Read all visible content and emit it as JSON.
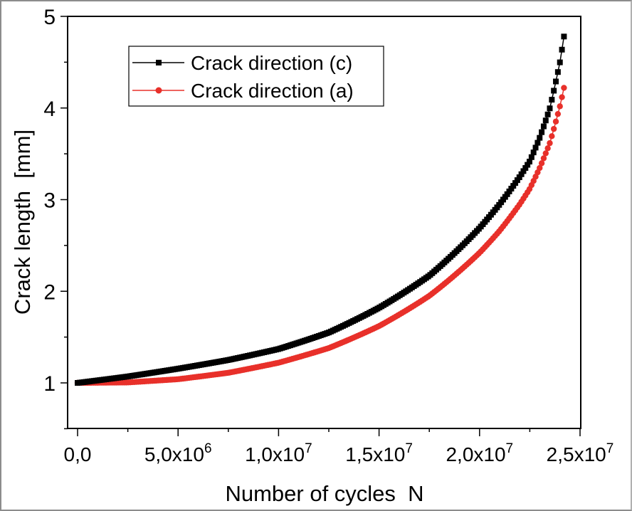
{
  "chart_data": {
    "type": "line",
    "title": "",
    "xlabel": "Number of cycles  N",
    "ylabel": "Crack length  [mm]",
    "xlim": [
      -500000,
      25000000
    ],
    "ylim": [
      0.5,
      5
    ],
    "grid": false,
    "legend_position": "upper-left",
    "x_ticks": [
      {
        "value": 0,
        "mant": "0,0",
        "exp": ""
      },
      {
        "value": 5000000,
        "mant": "5,0x10",
        "exp": "6"
      },
      {
        "value": 10000000,
        "mant": "1,0x10",
        "exp": "7"
      },
      {
        "value": 15000000,
        "mant": "1,5x10",
        "exp": "7"
      },
      {
        "value": 20000000,
        "mant": "2,0x10",
        "exp": "7"
      },
      {
        "value": 25000000,
        "mant": "2,5x10",
        "exp": "7"
      }
    ],
    "y_ticks": [
      1,
      2,
      3,
      4,
      5
    ],
    "series": [
      {
        "name": "Crack direction (c)",
        "color": "#000000",
        "marker": "square",
        "x": [
          0,
          2500000,
          5000000,
          7500000,
          10000000,
          12500000,
          15000000,
          17500000,
          20000000,
          21000000,
          22000000,
          22500000,
          23000000,
          23500000,
          24000000,
          24200000
        ],
        "y": [
          1.0,
          1.07,
          1.155,
          1.25,
          1.37,
          1.55,
          1.82,
          2.17,
          2.69,
          2.95,
          3.25,
          3.42,
          3.68,
          4.0,
          4.5,
          4.78
        ]
      },
      {
        "name": "Crack direction (a)",
        "color": "#e8302a",
        "marker": "circle",
        "x": [
          0,
          2500000,
          5000000,
          7500000,
          10000000,
          12500000,
          15000000,
          17500000,
          20000000,
          21000000,
          22000000,
          22500000,
          23000000,
          23500000,
          24000000,
          24200000
        ],
        "y": [
          1.0,
          1.005,
          1.04,
          1.11,
          1.22,
          1.38,
          1.62,
          1.95,
          2.42,
          2.66,
          2.95,
          3.12,
          3.35,
          3.62,
          4.02,
          4.22
        ]
      }
    ]
  },
  "legend": {
    "items": [
      {
        "label": "Crack direction (c)",
        "color": "#000000"
      },
      {
        "label": "Crack direction (a)",
        "color": "#e8302a"
      }
    ]
  },
  "colors": {
    "axis": "#000000",
    "frame_border": "#8c8c8c",
    "series_c": "#000000",
    "series_a": "#e8302a"
  }
}
